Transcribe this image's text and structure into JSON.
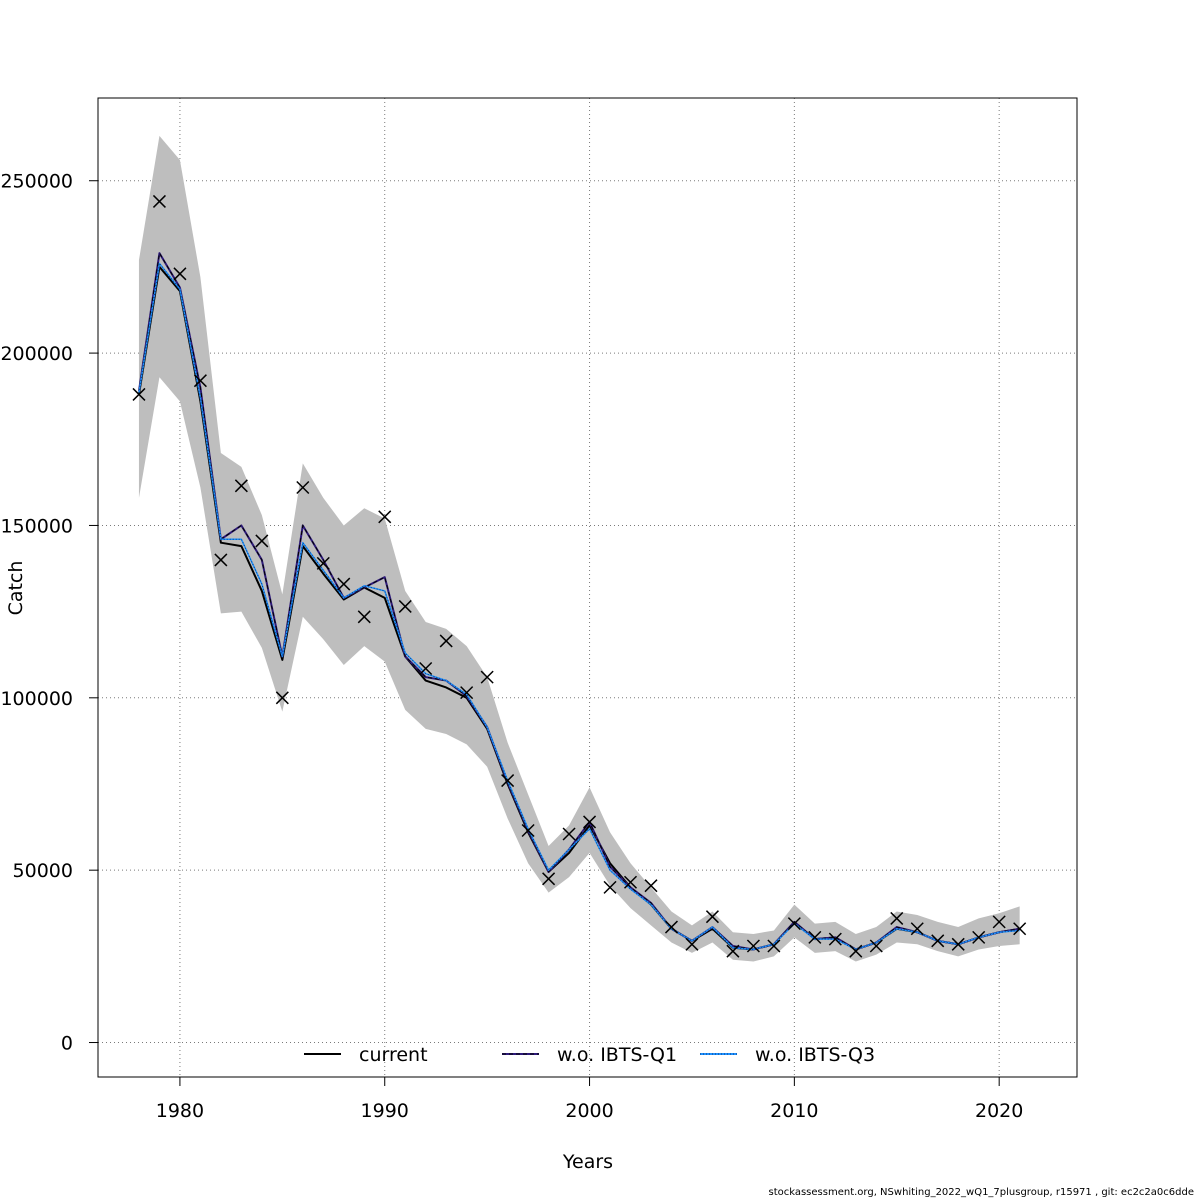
{
  "chart_data": {
    "type": "line",
    "xlabel": "Years",
    "ylabel": "Catch",
    "xlim": [
      1976,
      2023.8
    ],
    "ylim": [
      -10000,
      274000
    ],
    "x_ticks": [
      1980,
      1990,
      2000,
      2010,
      2020
    ],
    "y_ticks": [
      0,
      50000,
      100000,
      150000,
      200000,
      250000
    ],
    "grid": true,
    "legend_placement": "bottom-center",
    "colors": {
      "band": "#bebebe",
      "current": "#000000",
      "q1": "#2e1a7a",
      "q3": "#1e90ff",
      "grid": "#7a7a7a"
    },
    "years": [
      1978,
      1979,
      1980,
      1981,
      1982,
      1983,
      1984,
      1985,
      1986,
      1987,
      1988,
      1989,
      1990,
      1991,
      1992,
      1993,
      1994,
      1995,
      1996,
      1997,
      1998,
      1999,
      2000,
      2001,
      2002,
      2003,
      2004,
      2005,
      2006,
      2007,
      2008,
      2009,
      2010,
      2011,
      2012,
      2013,
      2014,
      2015,
      2016,
      2017,
      2018,
      2019,
      2020,
      2021
    ],
    "band_upper": [
      227000,
      263000,
      256000,
      222000,
      171000,
      167000,
      153000,
      130000,
      168000,
      158000,
      150000,
      155000,
      152000,
      131000,
      122000,
      120000,
      115000,
      106000,
      87000,
      72000,
      57000,
      63000,
      74000,
      61000,
      52000,
      45000,
      38000,
      34000,
      38000,
      32000,
      31500,
      32500,
      40000,
      34500,
      35000,
      31500,
      33500,
      38000,
      37000,
      35000,
      33500,
      36000,
      37500,
      39500
    ],
    "band_lower": [
      158000,
      193000,
      186000,
      161000,
      124500,
      125000,
      114500,
      96000,
      123500,
      117000,
      109500,
      115000,
      110500,
      96500,
      91000,
      89500,
      86500,
      80000,
      65000,
      52000,
      43500,
      48000,
      55000,
      45500,
      39000,
      34000,
      29000,
      26000,
      29000,
      24000,
      23500,
      25000,
      30500,
      26000,
      26500,
      23500,
      25500,
      29000,
      28500,
      26500,
      25000,
      27000,
      28000,
      28500
    ],
    "series": [
      {
        "name": "current",
        "style": "solid",
        "values": [
          188000,
          225000,
          218000,
          186000,
          145000,
          144000,
          131000,
          111000,
          144000,
          136000,
          128500,
          132000,
          129000,
          112000,
          105000,
          103000,
          100000,
          91000,
          75000,
          61000,
          49500,
          55000,
          63000,
          52000,
          45000,
          40000,
          33000,
          29500,
          33000,
          27500,
          27000,
          28500,
          35000,
          30000,
          30500,
          27000,
          29000,
          33000,
          32000,
          29500,
          28500,
          30500,
          32000,
          33000
        ]
      },
      {
        "name": "w.o. IBTS-Q1",
        "style": "dashed",
        "values": [
          189000,
          229000,
          219000,
          190000,
          146000,
          150000,
          140000,
          112000,
          150000,
          140000,
          129000,
          132000,
          135000,
          112000,
          106000,
          105000,
          100500,
          91500,
          75500,
          61500,
          49500,
          56000,
          64000,
          51000,
          45000,
          40500,
          33000,
          29500,
          33500,
          28000,
          27000,
          28500,
          35000,
          30000,
          30500,
          27000,
          29000,
          33500,
          32000,
          29500,
          28500,
          30500,
          32000,
          33000
        ]
      },
      {
        "name": "w.o. IBTS-Q3",
        "style": "dotted",
        "values": [
          188500,
          226000,
          218500,
          187000,
          146000,
          146000,
          133000,
          112000,
          145000,
          137000,
          129000,
          132500,
          131000,
          113000,
          107000,
          105000,
          101000,
          91500,
          76000,
          62000,
          50000,
          56000,
          62000,
          50000,
          44500,
          40000,
          33000,
          29500,
          33500,
          27500,
          27000,
          28500,
          34500,
          30000,
          30000,
          27000,
          29000,
          33000,
          32000,
          29500,
          28500,
          30500,
          32000,
          32500
        ]
      }
    ],
    "observations": [
      188000,
      244000,
      223000,
      192000,
      140000,
      161500,
      145500,
      100000,
      161000,
      139000,
      133000,
      123500,
      152500,
      126500,
      108500,
      116500,
      101500,
      106000,
      76000,
      61500,
      47500,
      60500,
      64000,
      45000,
      46500,
      45500,
      33500,
      28500,
      36500,
      26500,
      28000,
      28000,
      34500,
      30500,
      30000,
      26500,
      28000,
      36000,
      33000,
      29500,
      28500,
      30500,
      35000,
      33000
    ],
    "legend": [
      {
        "label": "current",
        "style": "solid"
      },
      {
        "label": "w.o. IBTS-Q1",
        "style": "dashed"
      },
      {
        "label": "w.o. IBTS-Q3",
        "style": "dotted"
      }
    ]
  },
  "footer": "stockassessment.org, NSwhiting_2022_wQ1_7plusgroup, r15971 , git: ec2c2a0c6dde"
}
